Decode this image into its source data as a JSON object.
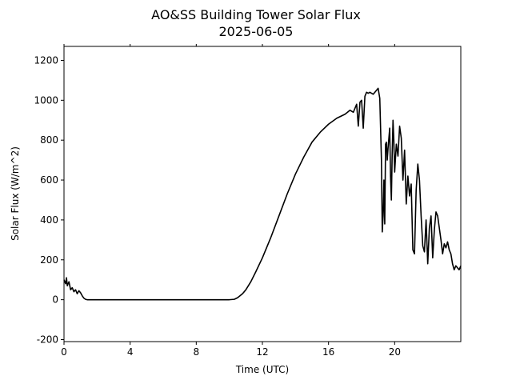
{
  "chart_data": {
    "type": "line",
    "title": "AO&SS Building Tower Solar Flux",
    "subtitle": "2025-06-05",
    "xlabel": "Time (UTC)",
    "ylabel": "Solar Flux (W/m^2)",
    "xlim": [
      0,
      24
    ],
    "ylim": [
      -210,
      1270
    ],
    "xticks": [
      0,
      4,
      8,
      12,
      16,
      20
    ],
    "xtick_labels": [
      "0",
      "4",
      "8",
      "12",
      "16",
      "20"
    ],
    "yticks": [
      -200,
      0,
      200,
      400,
      600,
      800,
      1000,
      1200
    ],
    "ytick_labels": [
      "-200",
      "0",
      "200",
      "400",
      "600",
      "800",
      "1000",
      "1200"
    ],
    "grid": false,
    "color": "#000000",
    "series": [
      {
        "x": [
          0.0,
          0.1,
          0.15,
          0.2,
          0.3,
          0.4,
          0.5,
          0.6,
          0.7,
          0.8,
          0.9,
          1.0,
          1.1,
          1.2,
          1.3,
          1.4,
          1.5,
          2.0,
          3.0,
          4.0,
          5.0,
          6.0,
          7.0,
          8.0,
          9.0,
          10.0,
          10.3,
          10.5,
          10.8,
          11.0,
          11.3,
          11.6,
          12.0,
          12.5,
          13.0,
          13.5,
          14.0,
          14.5,
          15.0,
          15.5,
          16.0,
          16.5,
          17.0,
          17.3,
          17.5,
          17.6,
          17.7,
          17.8,
          17.9,
          18.0,
          18.1,
          18.2,
          18.3,
          18.4,
          18.5,
          18.7,
          18.9,
          19.0,
          19.1,
          19.2,
          19.25,
          19.3,
          19.35,
          19.4,
          19.45,
          19.5,
          19.55,
          19.6,
          19.7,
          19.75,
          19.8,
          19.85,
          19.9,
          19.95,
          20.0,
          20.1,
          20.2,
          20.3,
          20.4,
          20.5,
          20.6,
          20.7,
          20.8,
          20.9,
          21.0,
          21.1,
          21.2,
          21.3,
          21.4,
          21.5,
          21.6,
          21.7,
          21.8,
          21.9,
          22.0,
          22.1,
          22.2,
          22.3,
          22.4,
          22.5,
          22.6,
          22.7,
          22.8,
          22.9,
          23.0,
          23.1,
          23.2,
          23.3,
          23.4,
          23.5,
          23.6,
          23.7,
          23.8,
          23.9,
          24.0
        ],
        "y": [
          100,
          80,
          110,
          70,
          90,
          50,
          60,
          40,
          50,
          30,
          45,
          35,
          20,
          8,
          2,
          0,
          0,
          0,
          0,
          0,
          0,
          0,
          0,
          0,
          0,
          0,
          2,
          10,
          30,
          50,
          90,
          140,
          210,
          310,
          420,
          530,
          630,
          715,
          790,
          840,
          880,
          910,
          930,
          950,
          940,
          960,
          980,
          870,
          990,
          1000,
          860,
          1020,
          1040,
          1035,
          1040,
          1030,
          1050,
          1060,
          1010,
          700,
          340,
          420,
          600,
          380,
          780,
          790,
          700,
          760,
          860,
          620,
          500,
          730,
          900,
          800,
          640,
          780,
          720,
          870,
          810,
          600,
          750,
          480,
          620,
          520,
          580,
          250,
          230,
          550,
          680,
          600,
          420,
          270,
          240,
          400,
          180,
          360,
          420,
          210,
          350,
          440,
          420,
          360,
          300,
          230,
          280,
          260,
          290,
          250,
          230,
          180,
          150,
          170,
          160,
          150,
          170
        ]
      }
    ]
  }
}
